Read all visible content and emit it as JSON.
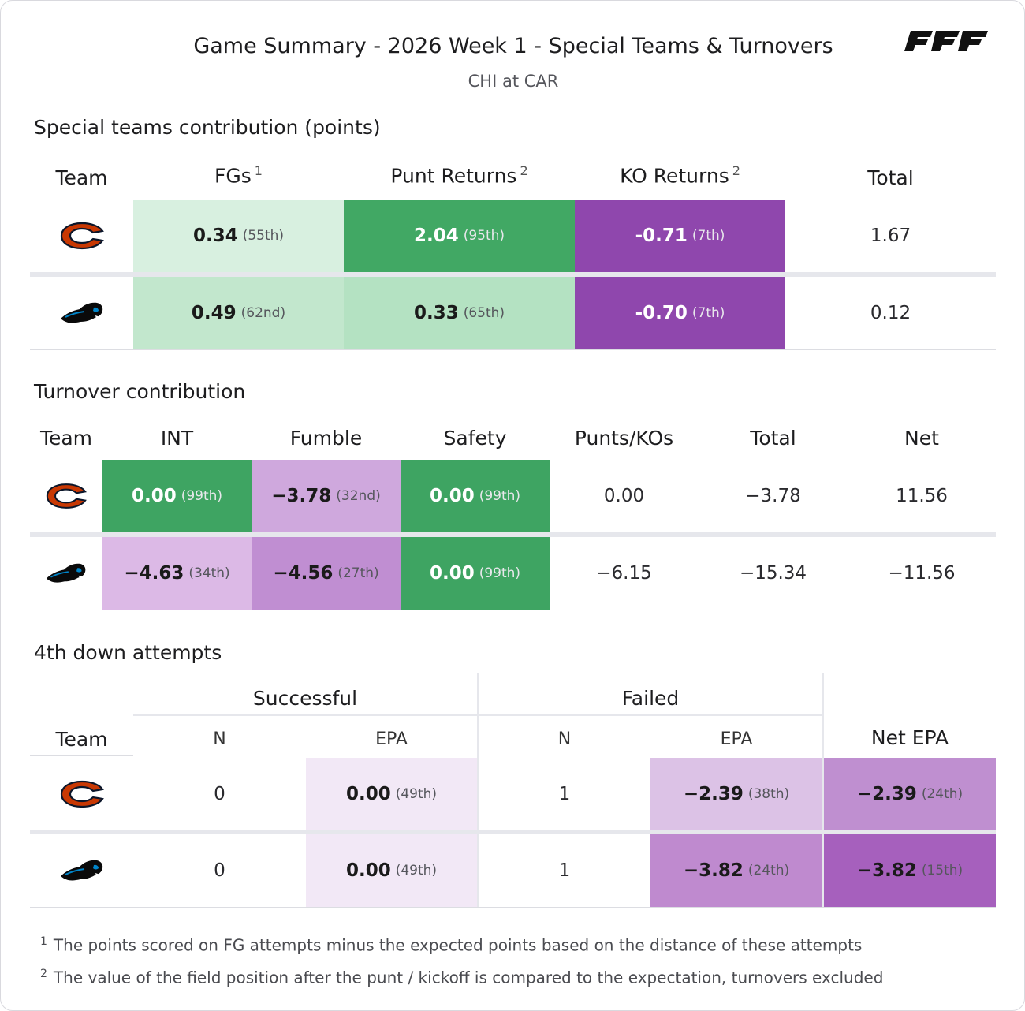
{
  "header": {
    "title": "Game Summary - 2026 Week 1 - Special Teams & Turnovers",
    "subtitle": "CHI at CAR",
    "brand": "PFF"
  },
  "colors": {
    "green_dark": "#41a864",
    "green_mid": "#3ea462",
    "green_light": "#d8f0e0",
    "green_light2": "#c2e7cd",
    "green_light3": "#b4e2c2",
    "purple_dark": "#8f47ad",
    "purple_light": "#cfa8dd",
    "purple_mid": "#c08ed2",
    "purple_pale": "#f2e8f6",
    "purple_soft": "#dcc2e6",
    "purple_netdark": "#a660bd"
  },
  "special_teams": {
    "section_title": "Special teams contribution (points)",
    "headers": {
      "team": "Team",
      "fgs": "FGs",
      "fgs_note": "1",
      "punt": "Punt Returns",
      "punt_note": "2",
      "ko": "KO Returns",
      "ko_note": "2",
      "total": "Total"
    },
    "rows": [
      {
        "team": "CHI",
        "fgs": "0.34",
        "fgs_rank": "(55th)",
        "punt": "2.04",
        "punt_rank": "(95th)",
        "ko": "-0.71",
        "ko_rank": "(7th)",
        "total": "1.67"
      },
      {
        "team": "CAR",
        "fgs": "0.49",
        "fgs_rank": "(62nd)",
        "punt": "0.33",
        "punt_rank": "(65th)",
        "ko": "-0.70",
        "ko_rank": "(7th)",
        "total": "0.12"
      }
    ]
  },
  "turnovers": {
    "section_title": "Turnover contribution",
    "headers": {
      "team": "Team",
      "int": "INT",
      "fumble": "Fumble",
      "safety": "Safety",
      "punts": "Punts/KOs",
      "total": "Total",
      "net": "Net"
    },
    "rows": [
      {
        "team": "CHI",
        "int": "0.00",
        "int_rank": "(99th)",
        "fumble": "−3.78",
        "fumble_rank": "(32nd)",
        "safety": "0.00",
        "safety_rank": "(99th)",
        "punts": "0.00",
        "total": "−3.78",
        "net": "11.56"
      },
      {
        "team": "CAR",
        "int": "−4.63",
        "int_rank": "(34th)",
        "fumble": "−4.56",
        "fumble_rank": "(27th)",
        "safety": "0.00",
        "safety_rank": "(99th)",
        "punts": "−6.15",
        "total": "−15.34",
        "net": "−11.56"
      }
    ]
  },
  "fourth_down": {
    "section_title": "4th down attempts",
    "headers": {
      "successful": "Successful",
      "failed": "Failed",
      "team": "Team",
      "n": "N",
      "epa": "EPA",
      "net_epa": "Net EPA"
    },
    "rows": [
      {
        "team": "CHI",
        "succ_n": "0",
        "succ_epa": "0.00",
        "succ_epa_rank": "(49th)",
        "fail_n": "1",
        "fail_epa": "−2.39",
        "fail_epa_rank": "(38th)",
        "net_epa": "−2.39",
        "net_epa_rank": "(24th)"
      },
      {
        "team": "CAR",
        "succ_n": "0",
        "succ_epa": "0.00",
        "succ_epa_rank": "(49th)",
        "fail_n": "1",
        "fail_epa": "−3.82",
        "fail_epa_rank": "(24th)",
        "net_epa": "−3.82",
        "net_epa_rank": "(15th)"
      }
    ]
  },
  "footnotes": [
    {
      "mark": "1",
      "text": "The points scored on FG attempts minus the expected points based on the distance of these attempts"
    },
    {
      "mark": "2",
      "text": "The value of the field position after the punt / kickoff is compared to the expectation, turnovers excluded"
    }
  ]
}
